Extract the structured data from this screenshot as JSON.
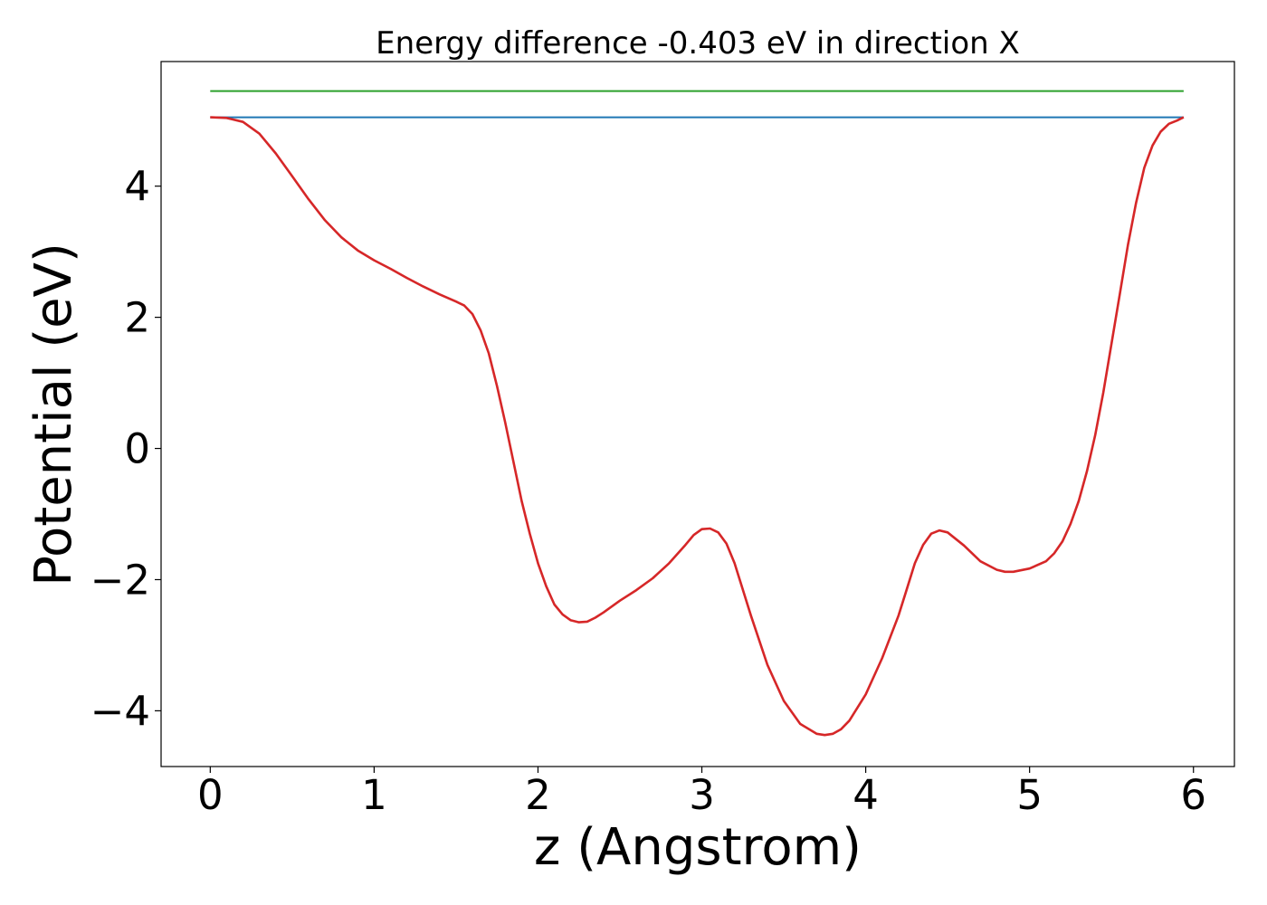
{
  "chart_data": {
    "type": "line",
    "title": "Energy difference -0.403 eV in direction X",
    "xlabel": "z (Angstrom)",
    "ylabel": "Potential (eV)",
    "xlim": [
      -0.3,
      6.25
    ],
    "ylim": [
      -4.85,
      5.9
    ],
    "xticks": [
      0,
      1,
      2,
      3,
      4,
      5,
      6
    ],
    "xtick_labels": [
      "0",
      "1",
      "2",
      "3",
      "4",
      "5",
      "6"
    ],
    "yticks": [
      -4,
      -2,
      0,
      2,
      4
    ],
    "ytick_labels": [
      "−4",
      "−2",
      "0",
      "2",
      "4"
    ],
    "grid": false,
    "series": [
      {
        "color": "#2ca02c",
        "x": [
          0,
          5.94
        ],
        "y": [
          5.45,
          5.45
        ]
      },
      {
        "color": "#1f77b4",
        "x": [
          0,
          5.94
        ],
        "y": [
          5.05,
          5.05
        ]
      },
      {
        "color": "#d62728",
        "x": [
          0,
          0.1,
          0.2,
          0.3,
          0.4,
          0.5,
          0.6,
          0.7,
          0.8,
          0.9,
          1.0,
          1.1,
          1.2,
          1.3,
          1.4,
          1.5,
          1.55,
          1.6,
          1.65,
          1.7,
          1.75,
          1.8,
          1.85,
          1.9,
          1.95,
          2.0,
          2.05,
          2.1,
          2.15,
          2.2,
          2.25,
          2.3,
          2.35,
          2.4,
          2.5,
          2.6,
          2.7,
          2.8,
          2.9,
          2.95,
          3.0,
          3.05,
          3.1,
          3.15,
          3.2,
          3.3,
          3.4,
          3.5,
          3.6,
          3.7,
          3.75,
          3.8,
          3.85,
          3.9,
          4.0,
          4.1,
          4.2,
          4.25,
          4.3,
          4.35,
          4.4,
          4.45,
          4.5,
          4.6,
          4.7,
          4.8,
          4.85,
          4.9,
          5.0,
          5.1,
          5.15,
          5.2,
          5.25,
          5.3,
          5.35,
          5.4,
          5.45,
          5.5,
          5.55,
          5.6,
          5.65,
          5.7,
          5.75,
          5.8,
          5.85,
          5.9,
          5.94
        ],
        "y": [
          5.05,
          5.04,
          4.98,
          4.8,
          4.5,
          4.15,
          3.8,
          3.48,
          3.22,
          3.02,
          2.87,
          2.74,
          2.6,
          2.47,
          2.35,
          2.24,
          2.18,
          2.05,
          1.8,
          1.45,
          0.95,
          0.4,
          -0.2,
          -0.8,
          -1.3,
          -1.75,
          -2.1,
          -2.38,
          -2.53,
          -2.62,
          -2.65,
          -2.64,
          -2.58,
          -2.5,
          -2.32,
          -2.16,
          -1.98,
          -1.75,
          -1.47,
          -1.32,
          -1.23,
          -1.22,
          -1.28,
          -1.45,
          -1.75,
          -2.55,
          -3.3,
          -3.85,
          -4.2,
          -4.35,
          -4.37,
          -4.35,
          -4.28,
          -4.15,
          -3.75,
          -3.2,
          -2.55,
          -2.15,
          -1.75,
          -1.47,
          -1.3,
          -1.25,
          -1.28,
          -1.48,
          -1.72,
          -1.85,
          -1.88,
          -1.88,
          -1.83,
          -1.72,
          -1.6,
          -1.42,
          -1.15,
          -0.8,
          -0.35,
          0.2,
          0.85,
          1.6,
          2.35,
          3.1,
          3.75,
          4.28,
          4.62,
          4.83,
          4.95,
          5.0,
          5.05
        ]
      }
    ]
  }
}
